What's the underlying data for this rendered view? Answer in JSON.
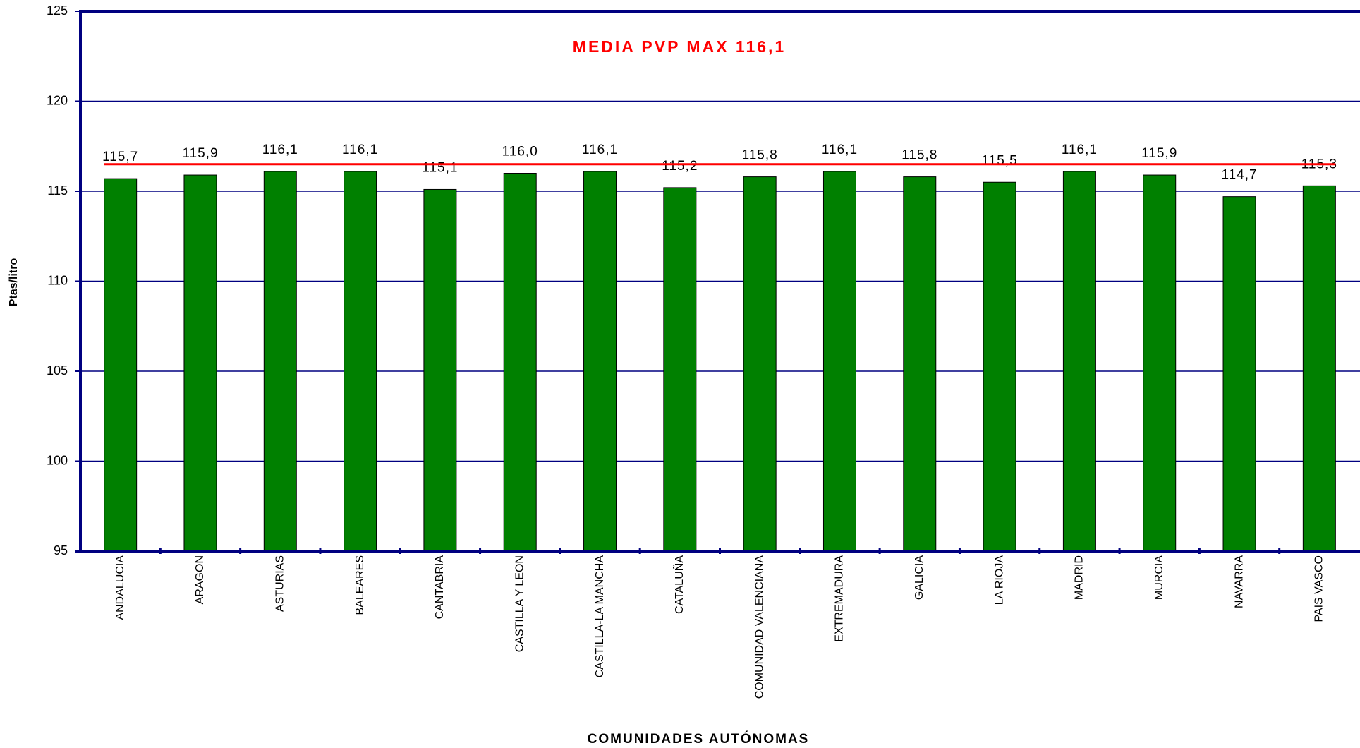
{
  "chart_data": {
    "type": "bar",
    "title": "MEDIA PVP MAX 116,1",
    "y_label": "Ptas/litro",
    "x_label": "COMUNIDADES AUTÓNOMAS",
    "categories": [
      "ANDALUCIA",
      "ARAGON",
      "ASTURIAS",
      "BALEARES",
      "CANTABRIA",
      "CASTILLA Y LEON",
      "CASTILLA-LA MANCHA",
      "CATALUÑA",
      "COMUNIDAD VALENCIANA",
      "EXTREMADURA",
      "GALICIA",
      "LA RIOJA",
      "MADRID",
      "MURCIA",
      "NAVARRA",
      "PAIS VASCO"
    ],
    "values": [
      115.7,
      115.9,
      116.1,
      116.1,
      115.1,
      116.0,
      116.1,
      115.2,
      115.8,
      116.1,
      115.8,
      115.5,
      116.1,
      115.9,
      114.7,
      115.3
    ],
    "value_labels": [
      "115,7",
      "115,9",
      "116,1",
      "116,1",
      "115,1",
      "116,0",
      "116,1",
      "115,2",
      "115,8",
      "116,1",
      "115,8",
      "115,5",
      "116,1",
      "115,9",
      "114,7",
      "115,3"
    ],
    "color": "#008000",
    "mean_line": {
      "value": 116.5,
      "color": "#ff0000"
    },
    "ylim": [
      95,
      125
    ],
    "yticks": [
      95,
      100,
      105,
      110,
      115,
      120,
      125
    ],
    "grid": true
  }
}
